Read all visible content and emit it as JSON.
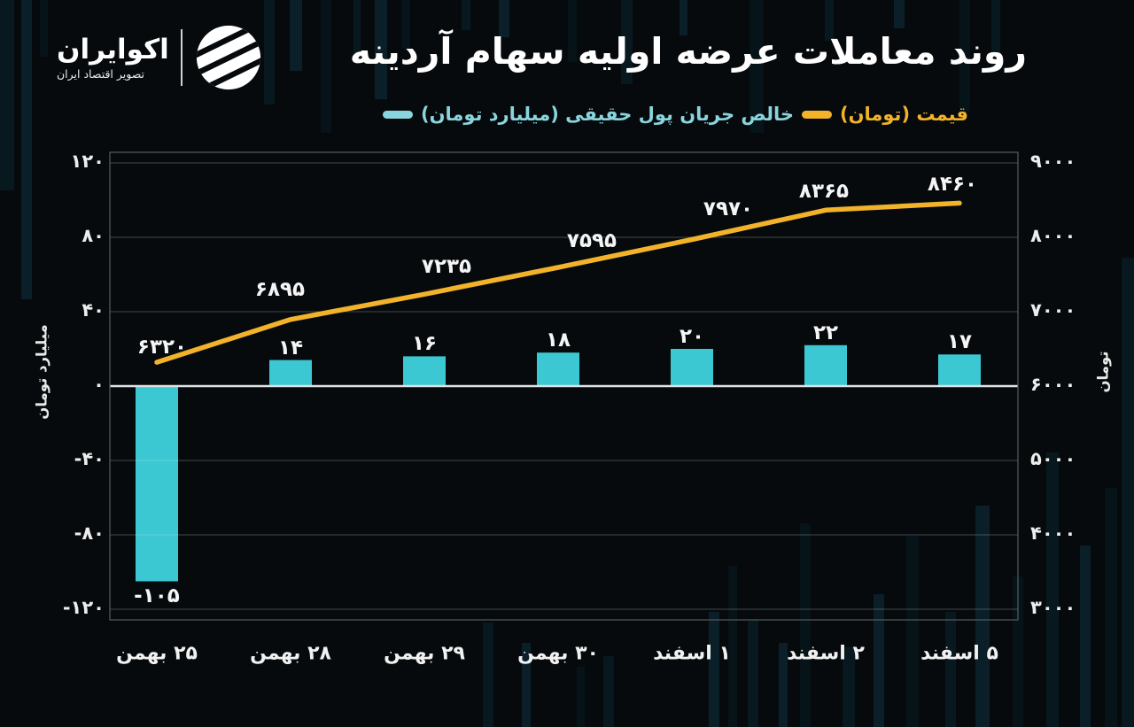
{
  "logo": {
    "name": "اکوایران",
    "tagline": "تصویر اقتصاد ایران"
  },
  "title": "روند معاملات عرضه اولیه سهام آردینه",
  "legend": [
    {
      "label": "خالص جریان پول حقیقی (میلیارد تومان)",
      "color": "#8ad4de",
      "swatch": "line-dash"
    },
    {
      "label": "قیمت (تومان)",
      "color": "#f2b32b",
      "swatch": "line-dash"
    }
  ],
  "colors": {
    "background": "#060a0c",
    "bar": "#3cc8d2",
    "line": "#f2b32b",
    "grid": "rgba(210,220,225,0.30)",
    "zero_line": "#dfe3e5",
    "plot_border": "#575d61",
    "text": "#f2f2f2"
  },
  "chart_data": {
    "type": "bar+line",
    "title": "روند معاملات عرضه اولیه سهام آردینه",
    "categories_fa": [
      "۲۵ بهمن",
      "۲۸ بهمن",
      "۲۹ بهمن",
      "۳۰ بهمن",
      "۱ اسفند",
      "۲ اسفند",
      "۵ اسفند"
    ],
    "series": [
      {
        "name": "خالص جریان پول حقیقی (میلیارد تومان)",
        "type": "bar",
        "axis": "left",
        "color": "#3cc8d2",
        "values": [
          -105,
          14,
          16,
          18,
          20,
          22,
          17
        ],
        "value_labels_fa": [
          "-۱۰۵",
          "۱۴",
          "۱۶",
          "۱۸",
          "۲۰",
          "۲۲",
          "۱۷"
        ]
      },
      {
        "name": "قیمت (تومان)",
        "type": "line",
        "axis": "right",
        "color": "#f2b32b",
        "values": [
          6320,
          6895,
          7235,
          7595,
          7970,
          8365,
          8460
        ],
        "value_labels_fa": [
          "۶۳۲۰",
          "۶۸۹۵",
          "۷۲۳۵",
          "۷۵۹۵",
          "۷۹۷۰",
          "۸۳۶۵",
          "۸۴۶۰"
        ]
      }
    ],
    "left_axis": {
      "title": "میلیارد تومان",
      "ticks": [
        120,
        80,
        40,
        0,
        -40,
        -80,
        -120
      ],
      "tick_labels_fa": [
        "۱۲۰",
        "۸۰",
        "۴۰",
        "۰",
        "-۴۰",
        "-۸۰",
        "-۱۲۰"
      ],
      "range": [
        -126,
        126
      ]
    },
    "right_axis": {
      "title": "تومان",
      "ticks": [
        9000,
        8000,
        7000,
        6000,
        5000,
        4000,
        3000
      ],
      "tick_labels_fa": [
        "۹۰۰۰",
        "۸۰۰۰",
        "۷۰۰۰",
        "۶۰۰۰",
        "۵۰۰۰",
        "۴۰۰۰",
        "۳۰۰۰"
      ],
      "range": [
        2860,
        9140
      ]
    },
    "grid": "horizontal",
    "legend_position": "top"
  }
}
